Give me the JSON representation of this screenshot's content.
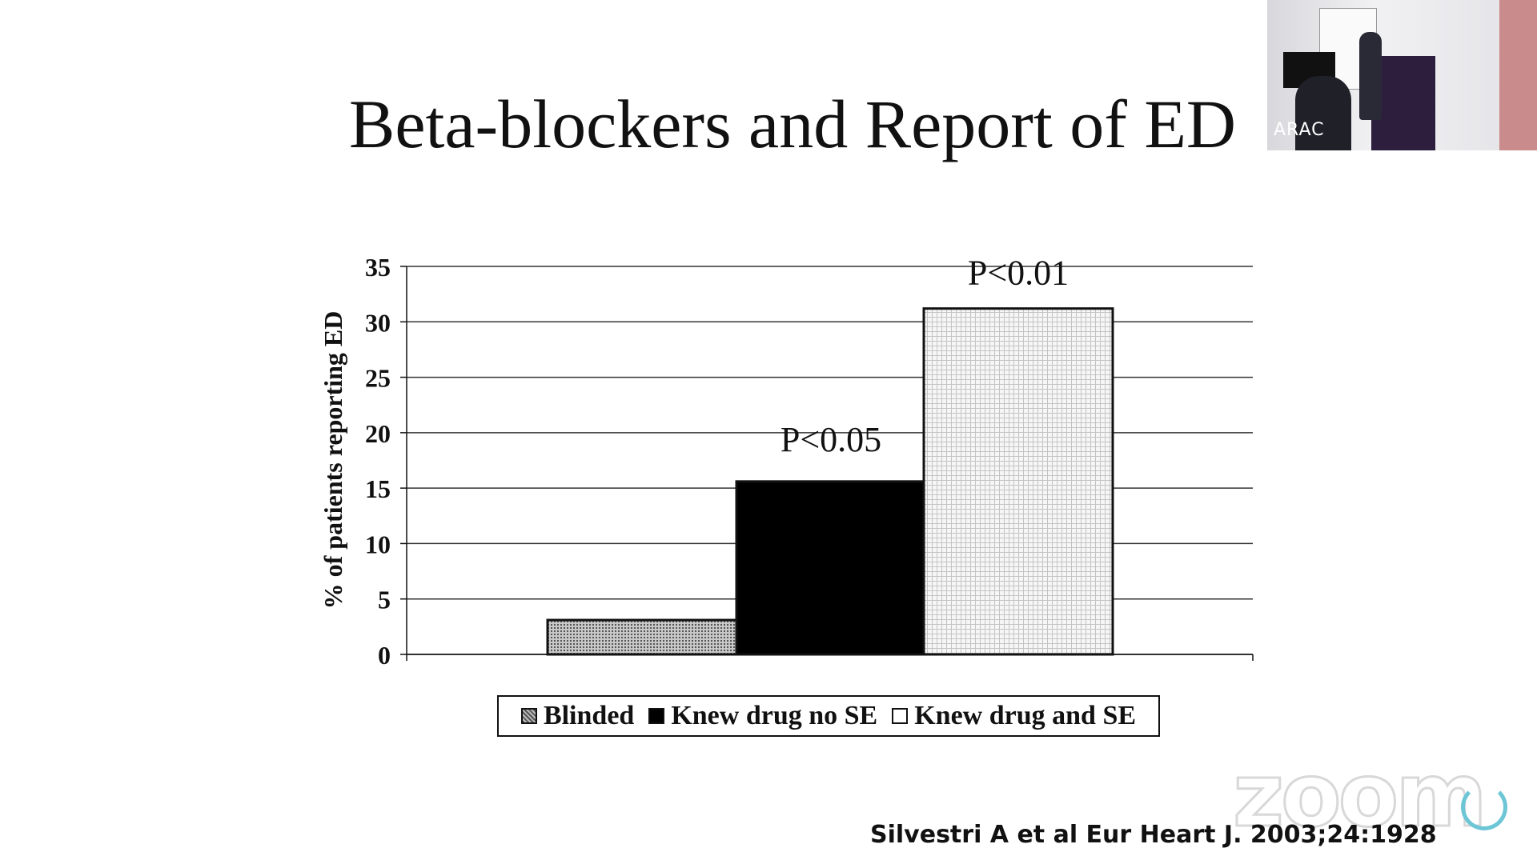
{
  "slide": {
    "title": "Beta-blockers and Report of ED",
    "citation": "Silvestri A et al Eur Heart J. 2003;24:1928"
  },
  "webcam": {
    "label": "ARAC"
  },
  "watermark": {
    "text": "zoom"
  },
  "chart_data": {
    "type": "bar",
    "categories": [
      "Blinded",
      "Knew drug no SE",
      "Knew drug and SE"
    ],
    "values": [
      3.1,
      15.6,
      31.2
    ],
    "ylabel": "% of patients reporting ED",
    "xlabel": "",
    "ylim": [
      0,
      35
    ],
    "yticks": [
      0,
      5,
      10,
      15,
      20,
      25,
      30,
      35
    ],
    "annotations": [
      "",
      "P<0.05",
      "P<0.01"
    ],
    "legend": [
      "Blinded",
      "Knew drug no SE",
      "Knew drug and SE"
    ],
    "legend_position": "bottom",
    "grid": true,
    "fills": [
      "gray-hatched",
      "#000000",
      "light-dotted"
    ]
  }
}
